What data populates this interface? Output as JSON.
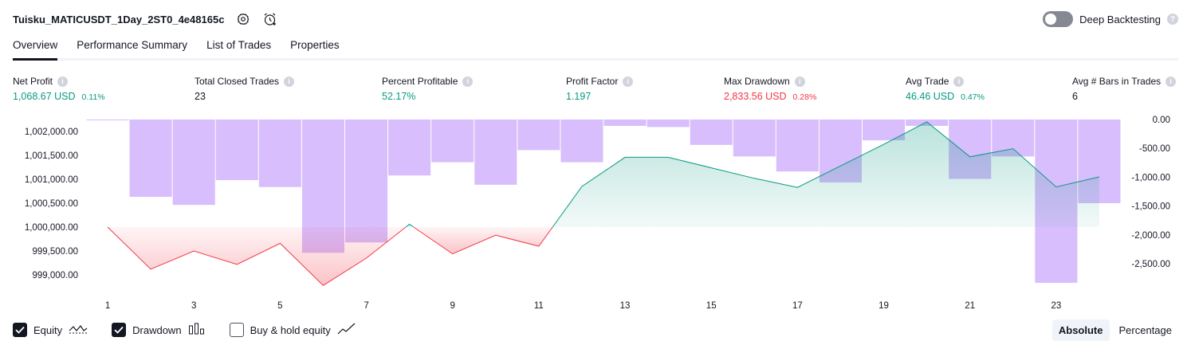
{
  "header": {
    "title": "Tuisku_MATICUSDT_1Day_2ST0_4e48165c",
    "settings_icon": "gear-icon",
    "alert_icon": "alarm-add-icon",
    "deep_backtesting_label": "Deep Backtesting",
    "deep_backtesting_enabled": false,
    "help_glyph": "?"
  },
  "tabs": [
    {
      "label": "Overview",
      "active": true
    },
    {
      "label": "Performance Summary",
      "active": false
    },
    {
      "label": "List of Trades",
      "active": false
    },
    {
      "label": "Properties",
      "active": false
    }
  ],
  "metrics": {
    "net_profit": {
      "label": "Net Profit",
      "value": "1,068.67 USD",
      "pct": "0.11%",
      "color": "#089981"
    },
    "total_closed_trades": {
      "label": "Total Closed Trades",
      "value": "23"
    },
    "percent_profitable": {
      "label": "Percent Profitable",
      "value": "52.17%",
      "color": "#089981"
    },
    "profit_factor": {
      "label": "Profit Factor",
      "value": "1.197",
      "color": "#089981"
    },
    "max_drawdown": {
      "label": "Max Drawdown",
      "value": "2,833.56 USD",
      "pct": "0.28%",
      "color": "#f23645"
    },
    "avg_trade": {
      "label": "Avg Trade",
      "value": "46.46 USD",
      "pct": "0.47%",
      "color": "#089981"
    },
    "avg_bars": {
      "label": "Avg # Bars in Trades",
      "value": "6"
    }
  },
  "chart_data": {
    "type": "line",
    "x": [
      1,
      2,
      3,
      4,
      5,
      6,
      7,
      8,
      9,
      10,
      11,
      12,
      13,
      14,
      15,
      16,
      17,
      18,
      19,
      20,
      21,
      22,
      23,
      24
    ],
    "x_tick_labels": [
      "1",
      "3",
      "5",
      "7",
      "9",
      "11",
      "13",
      "15",
      "17",
      "19",
      "21",
      "23"
    ],
    "y_left_ticks": [
      "1,002,000.00",
      "1,001,500.00",
      "1,001,000.00",
      "1,000,500.00",
      "1,000,000.00",
      "999,500.00",
      "999,000.00"
    ],
    "y_left_lim": [
      998750,
      1002250
    ],
    "y_right_ticks": [
      "0.00",
      "-500.00",
      "-1,000.00",
      "-1,500.00",
      "-2,000.00",
      "-2,500.00"
    ],
    "y_right_lim": [
      -2900,
      0
    ],
    "baseline": 1000000,
    "series": [
      {
        "name": "Equity",
        "axis": "left",
        "color_up": "#089981",
        "color_down": "#f23645",
        "values": [
          1000000,
          999120,
          999500,
          999220,
          999660,
          998780,
          999350,
          1000060,
          999440,
          999830,
          999600,
          1000850,
          1001460,
          1001460,
          1001240,
          1001020,
          1000830,
          1001280,
          1001730,
          1002200,
          1001470,
          1001640,
          1000840,
          1001050
        ]
      },
      {
        "name": "Drawdown",
        "axis": "right",
        "color": "#d1b3fb",
        "values": [
          0,
          -1340,
          -1480,
          -1050,
          -1170,
          -2310,
          -2130,
          -970,
          -740,
          -1130,
          -530,
          -740,
          -110,
          -130,
          -440,
          -640,
          -900,
          -1090,
          -360,
          -110,
          -1030,
          -640,
          -2830,
          -1450
        ]
      }
    ],
    "grid": false
  },
  "legend": [
    {
      "label": "Equity",
      "checked": true,
      "icon": "equity-line-icon"
    },
    {
      "label": "Drawdown",
      "checked": true,
      "icon": "drawdown-bars-icon"
    },
    {
      "label": "Buy & hold equity",
      "checked": false,
      "icon": "buy-hold-line-icon"
    }
  ],
  "mode": {
    "absolute_label": "Absolute",
    "percentage_label": "Percentage",
    "active": "Absolute"
  }
}
